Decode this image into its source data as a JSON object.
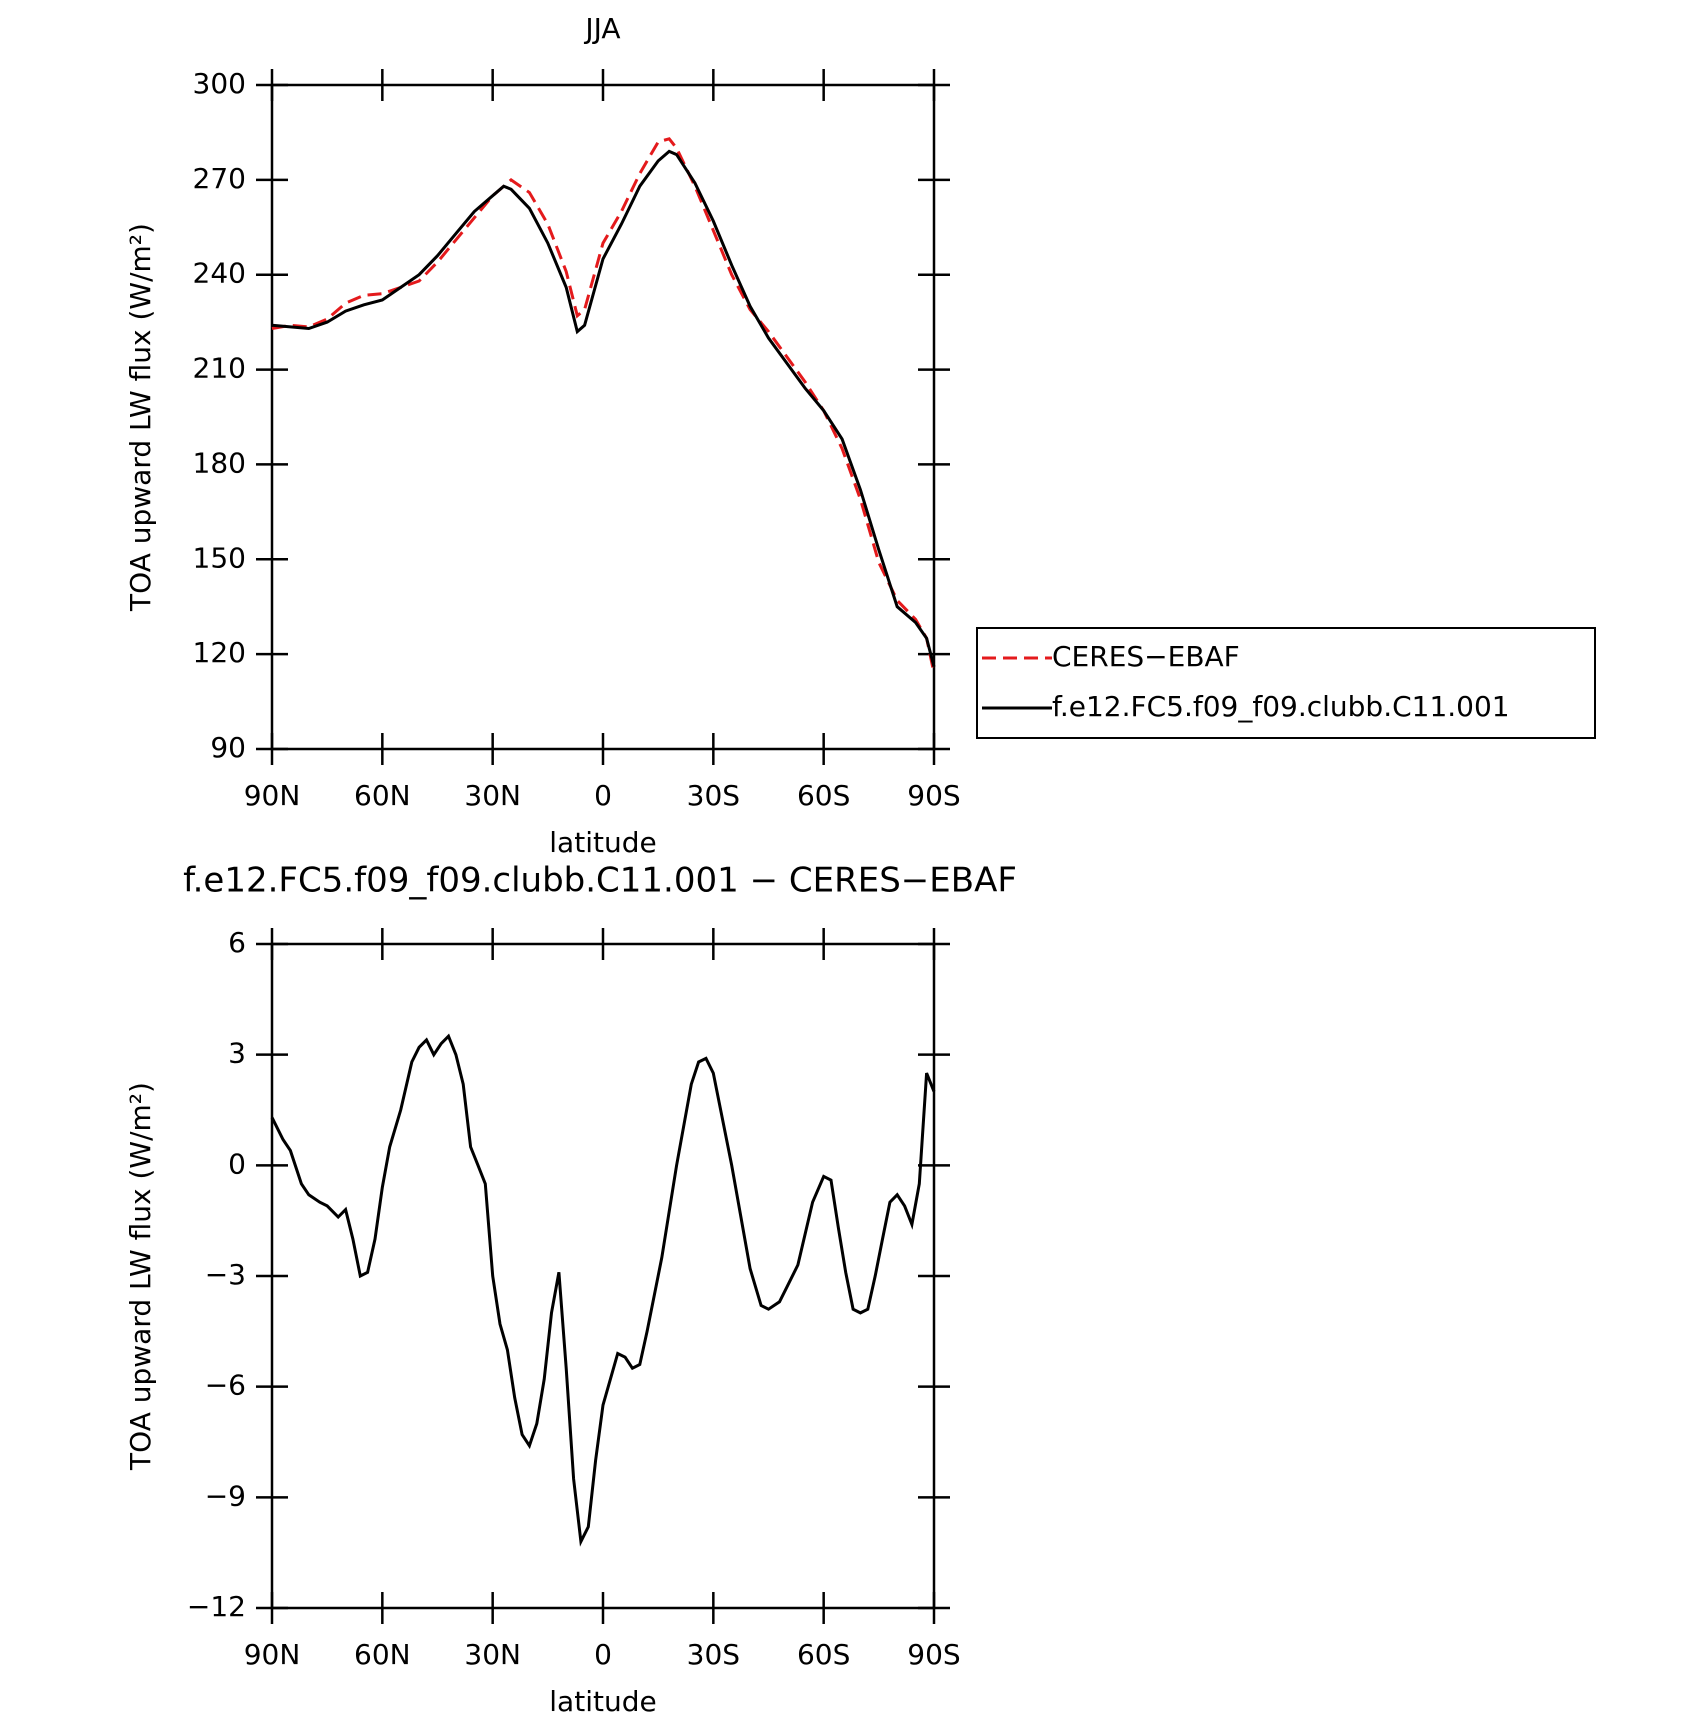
{
  "chart_data": [
    {
      "type": "line",
      "title": "JJA",
      "xlabel": "latitude",
      "ylabel": "TOA upward LW flux (W/m²)",
      "xlim": [
        90,
        -90
      ],
      "xticks": [
        {
          "value": 90,
          "label": "90N"
        },
        {
          "value": 60,
          "label": "60N"
        },
        {
          "value": 30,
          "label": "30N"
        },
        0,
        {
          "value": -30,
          "label": "30S"
        },
        {
          "value": -60,
          "label": "60S"
        },
        {
          "value": -90,
          "label": "90S"
        }
      ],
      "ylim": [
        90,
        300
      ],
      "yticks": [
        90,
        120,
        150,
        180,
        210,
        240,
        270,
        300
      ],
      "legend": "right",
      "series": [
        {
          "name": "CERES−EBAF",
          "color": "#e41a1c",
          "dash": true,
          "x": [
            90,
            85,
            80,
            75,
            70,
            65,
            60,
            55,
            50,
            45,
            40,
            35,
            30,
            25,
            20,
            15,
            10,
            7,
            5,
            0,
            -5,
            -10,
            -15,
            -18,
            -20,
            -25,
            -30,
            -35,
            -40,
            -45,
            -50,
            -55,
            -60,
            -65,
            -70,
            -75,
            -80,
            -85,
            -88,
            -90
          ],
          "values": [
            223,
            224,
            223.5,
            226,
            231,
            233.5,
            234,
            236,
            238,
            244,
            251,
            258,
            265,
            270,
            266,
            256,
            241,
            227,
            229,
            250,
            260,
            272,
            282,
            283,
            280,
            268,
            254,
            240,
            229,
            222,
            214,
            206,
            197,
            185,
            169,
            149,
            137,
            131,
            125,
            114
          ]
        },
        {
          "name": "f.e12.FC5.f09_f09.clubb.C11.001",
          "color": "#000000",
          "dash": false,
          "x": [
            90,
            85,
            80,
            75,
            70,
            65,
            60,
            55,
            50,
            45,
            40,
            35,
            30,
            27,
            25,
            20,
            15,
            10,
            7,
            5,
            0,
            -5,
            -10,
            -15,
            -18,
            -20,
            -25,
            -30,
            -35,
            -40,
            -45,
            -50,
            -55,
            -60,
            -65,
            -70,
            -75,
            -80,
            -85,
            -88,
            -90
          ],
          "values": [
            224,
            223.5,
            223,
            225,
            228.5,
            230.5,
            232,
            236,
            240,
            246,
            253,
            260,
            265,
            268,
            267,
            261,
            250,
            236,
            222,
            224,
            245,
            256,
            268,
            276,
            279,
            278,
            269,
            257,
            243,
            230,
            220,
            212,
            204,
            197,
            188,
            172,
            153,
            135,
            130,
            125,
            116
          ]
        }
      ]
    },
    {
      "type": "line",
      "title": "f.e12.FC5.f09_f09.clubb.C11.001 − CERES−EBAF",
      "xlabel": "latitude",
      "ylabel": "TOA upward LW flux (W/m²)",
      "xlim": [
        90,
        -90
      ],
      "xticks": [
        {
          "value": 90,
          "label": "90N"
        },
        {
          "value": 60,
          "label": "60N"
        },
        {
          "value": 30,
          "label": "30N"
        },
        0,
        {
          "value": -30,
          "label": "30S"
        },
        {
          "value": -60,
          "label": "60S"
        },
        {
          "value": -90,
          "label": "90S"
        }
      ],
      "ylim": [
        -12,
        6
      ],
      "yticks": [
        {
          "value": -12,
          "label": "−12"
        },
        {
          "value": -9,
          "label": "−9"
        },
        {
          "value": -6,
          "label": "−6"
        },
        {
          "value": -3,
          "label": "−3"
        },
        0,
        3,
        6
      ],
      "series": [
        {
          "color": "#000000",
          "dash": false,
          "x": [
            90,
            87,
            85,
            82,
            80,
            77,
            75,
            72,
            70,
            68,
            66,
            64,
            62,
            60,
            58,
            55,
            52,
            50,
            48,
            46,
            44,
            42,
            40,
            38,
            36,
            34,
            32,
            30,
            28,
            26,
            24,
            22,
            20,
            18,
            16,
            14,
            12,
            10,
            8,
            6,
            4,
            2,
            0,
            -4,
            -6,
            -8,
            -10,
            -12,
            -16,
            -20,
            -24,
            -26,
            -28,
            -30,
            -35,
            -40,
            -43,
            -45,
            -48,
            -50,
            -53,
            -57,
            -60,
            -62,
            -64,
            -66,
            -68,
            -70,
            -72,
            -74,
            -76,
            -78,
            -80,
            -82,
            -84,
            -86,
            -88,
            -90
          ],
          "values": [
            1.3,
            0.7,
            0.4,
            -0.5,
            -0.8,
            -1.0,
            -1.1,
            -1.4,
            -1.2,
            -2.0,
            -3.0,
            -2.9,
            -2.0,
            -0.6,
            0.5,
            1.5,
            2.8,
            3.2,
            3.4,
            3.0,
            3.3,
            3.5,
            3.0,
            2.2,
            0.5,
            0.0,
            -0.5,
            -3.0,
            -4.3,
            -5.0,
            -6.3,
            -7.3,
            -7.6,
            -7.0,
            -5.8,
            -4.0,
            -2.9,
            -5.5,
            -8.5,
            -10.2,
            -9.8,
            -8.0,
            -6.5,
            -5.1,
            -5.2,
            -5.5,
            -5.4,
            -4.5,
            -2.5,
            0.0,
            2.2,
            2.8,
            2.9,
            2.5,
            0.0,
            -2.8,
            -3.8,
            -3.9,
            -3.7,
            -3.3,
            -2.7,
            -1.0,
            -0.3,
            -0.4,
            -1.7,
            -2.9,
            -3.9,
            -4.0,
            -3.9,
            -3.0,
            -2.0,
            -1.0,
            -0.8,
            -1.1,
            -1.6,
            -0.5,
            2.5,
            2.0
          ]
        }
      ]
    }
  ]
}
